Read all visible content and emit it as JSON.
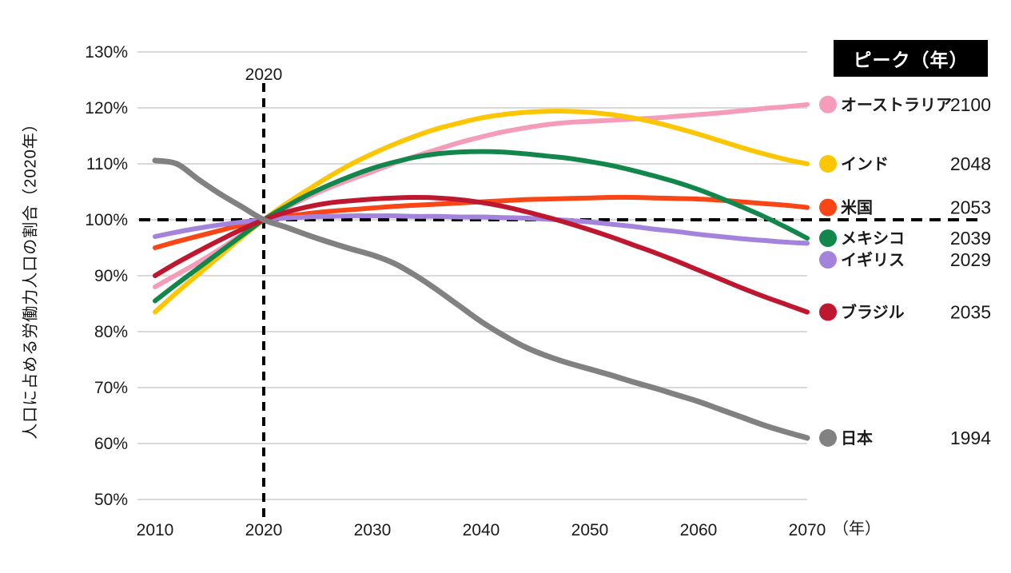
{
  "page": {
    "background": "#ffffff"
  },
  "chart_data": {
    "type": "line",
    "title": "",
    "ylabel": "人口に占める労働力人口の割合（2020年）",
    "x_axis_unit": "（年）",
    "xlim": [
      2010,
      2070
    ],
    "ylim": [
      50,
      130
    ],
    "grid": "horizontal",
    "x_tick_labels": [
      "2010",
      "2020",
      "2030",
      "2040",
      "2050",
      "2060",
      "2070"
    ],
    "x_tick_values": [
      2010,
      2020,
      2030,
      2040,
      2050,
      2060,
      2070
    ],
    "y_tick_labels": [
      "130%",
      "120%",
      "110%",
      "100%",
      "90%",
      "80%",
      "70%",
      "60%",
      "50%"
    ],
    "y_tick_values": [
      130,
      120,
      110,
      100,
      90,
      80,
      70,
      60,
      50
    ],
    "baseline_value": 100,
    "reference_line": {
      "x": 2020,
      "label": "2020"
    },
    "legend": {
      "header": "ピーク（年）",
      "position": "right"
    },
    "x": [
      2010,
      2012,
      2014,
      2016,
      2018,
      2020,
      2022,
      2024,
      2026,
      2028,
      2030,
      2032,
      2034,
      2036,
      2038,
      2040,
      2042,
      2044,
      2046,
      2048,
      2050,
      2052,
      2054,
      2056,
      2058,
      2060,
      2062,
      2064,
      2066,
      2068,
      2070
    ],
    "series": [
      {
        "name": "オーストラリア",
        "peak_year": "2100",
        "color": "#F59CBA",
        "values": [
          88.0,
          90.2,
          92.4,
          94.8,
          97.4,
          100,
          102.1,
          104.0,
          105.7,
          107.2,
          108.6,
          110.1,
          111.4,
          112.6,
          113.8,
          114.8,
          115.7,
          116.4,
          117.0,
          117.4,
          117.6,
          117.8,
          118.0,
          118.2,
          118.5,
          118.8,
          119.1,
          119.5,
          119.9,
          120.2,
          120.6
        ]
      },
      {
        "name": "インド",
        "peak_year": "2048",
        "color": "#FCC602",
        "values": [
          83.5,
          87.0,
          90.3,
          93.6,
          96.9,
          100,
          102.8,
          105.3,
          107.7,
          109.9,
          111.8,
          113.5,
          115.0,
          116.3,
          117.3,
          118.2,
          118.8,
          119.2,
          119.4,
          119.4,
          119.2,
          118.8,
          118.2,
          117.4,
          116.4,
          115.3,
          114.1,
          112.9,
          111.8,
          110.8,
          110.0
        ]
      },
      {
        "name": "米国",
        "peak_year": "2053",
        "color": "#FA4616",
        "values": [
          95.0,
          96.1,
          97.1,
          98.1,
          99.1,
          100,
          100.6,
          101.1,
          101.5,
          101.8,
          102.1,
          102.4,
          102.6,
          102.8,
          103.0,
          103.2,
          103.4,
          103.6,
          103.7,
          103.8,
          103.9,
          104.0,
          104.0,
          103.9,
          103.8,
          103.7,
          103.5,
          103.2,
          102.9,
          102.6,
          102.2
        ]
      },
      {
        "name": "メキシコ",
        "peak_year": "2039",
        "color": "#12864B",
        "values": [
          85.5,
          88.5,
          91.4,
          94.3,
          97.2,
          100,
          102.3,
          104.4,
          106.2,
          107.8,
          109.2,
          110.3,
          111.2,
          111.8,
          112.1,
          112.2,
          112.1,
          111.8,
          111.4,
          111.0,
          110.4,
          109.7,
          108.8,
          107.8,
          106.7,
          105.4,
          103.9,
          102.3,
          100.6,
          98.7,
          96.7
        ]
      },
      {
        "name": "イギリス",
        "peak_year": "2029",
        "color": "#A383DC",
        "values": [
          97.0,
          97.8,
          98.5,
          99.1,
          99.6,
          100,
          100.3,
          100.5,
          100.6,
          100.7,
          100.7,
          100.7,
          100.6,
          100.6,
          100.5,
          100.5,
          100.4,
          100.3,
          100.1,
          99.9,
          99.6,
          99.2,
          98.8,
          98.3,
          97.9,
          97.4,
          97.0,
          96.6,
          96.3,
          96.0,
          95.8
        ]
      },
      {
        "name": "ブラジル",
        "peak_year": "2035",
        "color": "#BE1730",
        "values": [
          90.0,
          92.3,
          94.4,
          96.4,
          98.3,
          100,
          101.3,
          102.3,
          103.0,
          103.4,
          103.7,
          103.9,
          104.0,
          103.9,
          103.6,
          103.1,
          102.4,
          101.5,
          100.5,
          99.4,
          98.2,
          96.9,
          95.5,
          94.1,
          92.6,
          91.0,
          89.4,
          87.8,
          86.3,
          84.9,
          83.5
        ]
      },
      {
        "name": "日本",
        "peak_year": "1994",
        "color": "#818181",
        "values": [
          110.6,
          110.0,
          107.2,
          104.6,
          102.3,
          100,
          98.7,
          97.3,
          96.0,
          94.8,
          93.7,
          92.2,
          90.0,
          87.4,
          84.6,
          81.8,
          79.4,
          77.3,
          75.7,
          74.4,
          73.3,
          72.2,
          71.0,
          69.9,
          68.7,
          67.5,
          66.1,
          64.7,
          63.3,
          62.1,
          61.0
        ]
      }
    ]
  }
}
